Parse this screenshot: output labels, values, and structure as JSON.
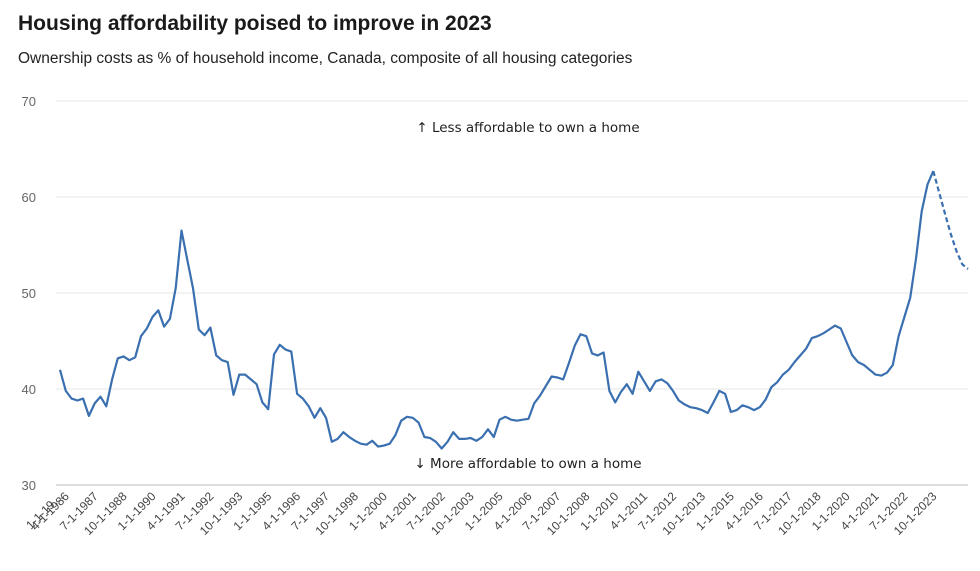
{
  "chart_data": {
    "type": "line",
    "title": "Housing affordability poised to improve in 2023",
    "subtitle": "Ownership costs as % of household income, Canada, composite of all housing categories",
    "xlabel": "",
    "ylabel": "",
    "ylim": [
      30,
      70
    ],
    "yticks": [
      "30",
      "40",
      "50",
      "60",
      "70"
    ],
    "grid": true,
    "legend": "none",
    "line_color": "#3a6fb0",
    "x_start": "1986-01-01",
    "x_step_months": 3,
    "x_ticks": [
      {
        "label": "1-1-19…",
        "index": 0
      },
      {
        "label": "4-1-1986",
        "index": 1
      },
      {
        "label": "7-1-1987",
        "index": 6
      },
      {
        "label": "10-1-1988",
        "index": 11
      },
      {
        "label": "1-1-1990",
        "index": 16
      },
      {
        "label": "4-1-1991",
        "index": 21
      },
      {
        "label": "7-1-1992",
        "index": 26
      },
      {
        "label": "10-1-1993",
        "index": 31
      },
      {
        "label": "1-1-1995",
        "index": 36
      },
      {
        "label": "4-1-1996",
        "index": 41
      },
      {
        "label": "7-1-1997",
        "index": 46
      },
      {
        "label": "10-1-1998",
        "index": 51
      },
      {
        "label": "1-1-2000",
        "index": 56
      },
      {
        "label": "4-1-2001",
        "index": 61
      },
      {
        "label": "7-1-2002",
        "index": 66
      },
      {
        "label": "10-1-2003",
        "index": 71
      },
      {
        "label": "1-1-2005",
        "index": 76
      },
      {
        "label": "4-1-2006",
        "index": 81
      },
      {
        "label": "7-1-2007",
        "index": 86
      },
      {
        "label": "10-1-2008",
        "index": 91
      },
      {
        "label": "1-1-2010",
        "index": 96
      },
      {
        "label": "4-1-2011",
        "index": 101
      },
      {
        "label": "7-1-2012",
        "index": 106
      },
      {
        "label": "10-1-2013",
        "index": 111
      },
      {
        "label": "1-1-2015",
        "index": 116
      },
      {
        "label": "4-1-2016",
        "index": 121
      },
      {
        "label": "7-1-2017",
        "index": 126
      },
      {
        "label": "10-1-2018",
        "index": 131
      },
      {
        "label": "1-1-2020",
        "index": 136
      },
      {
        "label": "4-1-2021",
        "index": 141
      },
      {
        "label": "7-1-2022",
        "index": 146
      },
      {
        "label": "10-1-2023",
        "index": 151
      }
    ],
    "annotations": {
      "top": "↑ Less affordable to own a home",
      "bottom": "↓ More affordable to own a home"
    },
    "series": [
      {
        "name": "",
        "style": "solid",
        "values": [
          42.0,
          39.8,
          39.0,
          38.8,
          39.0,
          37.2,
          38.5,
          39.2,
          38.2,
          41.0,
          43.2,
          43.4,
          43.0,
          43.3,
          45.5,
          46.3,
          47.5,
          48.2,
          46.5,
          47.3,
          50.5,
          56.5,
          53.5,
          50.5,
          46.2,
          45.6,
          46.4,
          43.5,
          43.0,
          42.8,
          39.4,
          41.5,
          41.5,
          41.0,
          40.5,
          38.6,
          37.9,
          43.6,
          44.6,
          44.1,
          43.9,
          39.5,
          39.0,
          38.2,
          37.0,
          38.0,
          37.0,
          34.5,
          34.8,
          35.5,
          35.0,
          34.6,
          34.3,
          34.2,
          34.6,
          34.0,
          34.1,
          34.3,
          35.2,
          36.7,
          37.1,
          37.0,
          36.5,
          35.0,
          34.9,
          34.5,
          33.8,
          34.5,
          35.5,
          34.8,
          34.8,
          34.9,
          34.6,
          35.0,
          35.8,
          35.0,
          36.8,
          37.1,
          36.8,
          36.7,
          36.8,
          36.9,
          38.5,
          39.3,
          40.3,
          41.3,
          41.2,
          41.0,
          42.7,
          44.5,
          45.7,
          45.5,
          43.7,
          43.5,
          43.8,
          39.8,
          38.6,
          39.7,
          40.5,
          39.5,
          41.8,
          40.8,
          39.8,
          40.8,
          41.0,
          40.6,
          39.8,
          38.8,
          38.4,
          38.1,
          38.0,
          37.8,
          37.5,
          38.6,
          39.8,
          39.5,
          37.6,
          37.8,
          38.3,
          38.1,
          37.8,
          38.1,
          38.9,
          40.2,
          40.7,
          41.5,
          42.0,
          42.8,
          43.5,
          44.2,
          45.3,
          45.5,
          45.8,
          46.2,
          46.6,
          46.3,
          44.9,
          43.5,
          42.8,
          42.5,
          42.0,
          41.5,
          41.4,
          41.7,
          42.5,
          45.5,
          47.5,
          49.5,
          53.5,
          58.5,
          61.3,
          62.7
        ]
      },
      {
        "name": "",
        "style": "dashed",
        "start_index": 151,
        "values": [
          62.7,
          60.5,
          58.3,
          56.2,
          54.4,
          53.0,
          52.5
        ]
      }
    ]
  }
}
